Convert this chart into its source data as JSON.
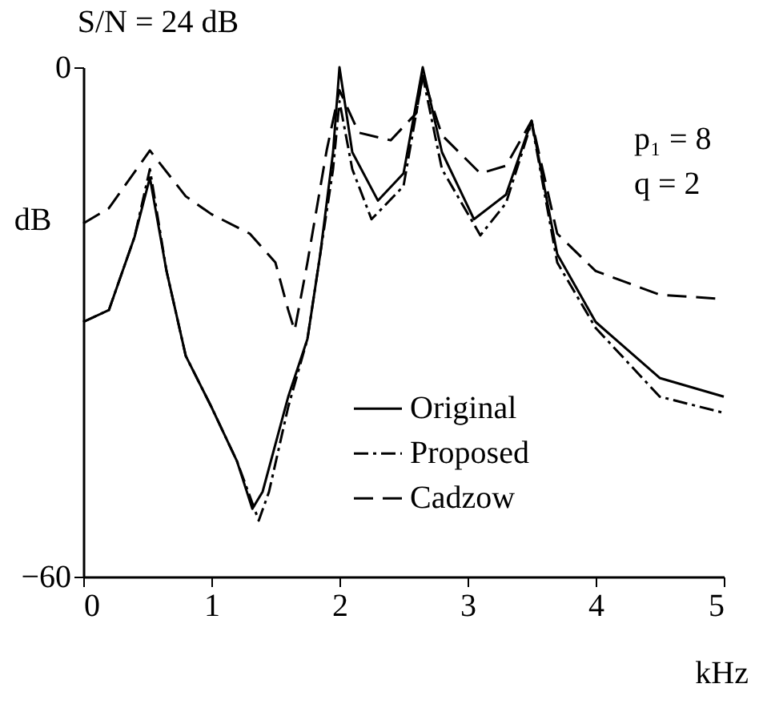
{
  "chart_data": {
    "type": "line",
    "title": "S/N = 24 dB",
    "xlabel": "kHz",
    "ylabel": "dB",
    "annotations": [
      "p₁ = 8",
      "q = 2"
    ],
    "xlim": [
      0,
      5
    ],
    "xticks": [
      0,
      1,
      2,
      3,
      4,
      5
    ],
    "ylim": [
      -60,
      0
    ],
    "yticks": [
      0,
      -60
    ],
    "grid": false,
    "legend": "bottom",
    "marker": "none",
    "series": [
      {
        "name": "Original",
        "color": "#000000",
        "line_style": "solid",
        "x": [
          0,
          0.2,
          0.4,
          0.52,
          0.65,
          0.8,
          1.0,
          1.2,
          1.32,
          1.4,
          1.6,
          1.75,
          1.85,
          1.95,
          2.0,
          2.1,
          2.3,
          2.5,
          2.65,
          2.8,
          3.05,
          3.3,
          3.5,
          3.7,
          4.0,
          4.5,
          5.0
        ],
        "values": [
          -30,
          -28.6,
          -20,
          -13,
          -24,
          -34,
          -40,
          -46.4,
          -52,
          -50,
          -38.8,
          -32,
          -22,
          -10,
          0,
          -10,
          -15.7,
          -12.5,
          0,
          -10,
          -17.9,
          -15,
          -6.3,
          -22,
          -30,
          -36.6,
          -38.8
        ]
      },
      {
        "name": "Proposed",
        "color": "#000000",
        "line_style": "dashdot",
        "x": [
          0,
          0.2,
          0.4,
          0.52,
          0.65,
          0.8,
          1.0,
          1.2,
          1.37,
          1.45,
          1.6,
          1.75,
          1.85,
          1.95,
          2.0,
          2.1,
          2.25,
          2.5,
          2.65,
          2.8,
          3.1,
          3.3,
          3.5,
          3.7,
          4.0,
          4.5,
          5.0
        ],
        "values": [
          -30,
          -28.6,
          -20,
          -12,
          -24,
          -34,
          -40,
          -46.4,
          -53.4,
          -50,
          -40,
          -32,
          -22,
          -12,
          -4,
          -12,
          -17.9,
          -14,
          -1,
          -12,
          -19.8,
          -16,
          -6.5,
          -23,
          -30.7,
          -38.8,
          -40.7
        ]
      },
      {
        "name": "Cadzow",
        "color": "#000000",
        "line_style": "dashed",
        "x": [
          0,
          0.2,
          0.52,
          0.8,
          1.0,
          1.3,
          1.5,
          1.6,
          1.65,
          1.75,
          1.9,
          2.0,
          2.15,
          2.4,
          2.6,
          2.65,
          2.8,
          3.1,
          3.3,
          3.5,
          3.7,
          4.0,
          4.5,
          5.0
        ],
        "values": [
          -18.4,
          -16.6,
          -9.8,
          -15.2,
          -17.3,
          -19.6,
          -23,
          -28.6,
          -31,
          -23,
          -9.8,
          -2.7,
          -7.7,
          -8.6,
          -5.4,
          -1,
          -8,
          -12.5,
          -11.6,
          -6.3,
          -19.6,
          -24,
          -26.8,
          -27.3
        ]
      }
    ]
  }
}
